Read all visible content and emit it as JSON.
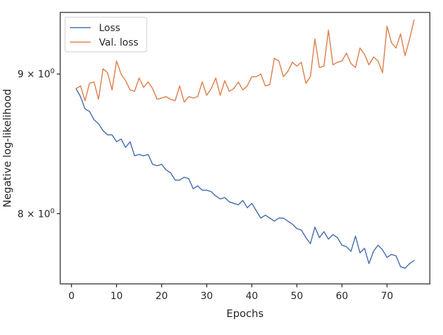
{
  "chart_data": {
    "type": "line",
    "title": "",
    "xlabel": "Epochs",
    "ylabel": "Negative log-likelihood",
    "xlim": [
      -2.5,
      79.5
    ],
    "ylim": [
      7.54,
      9.48
    ],
    "yscale": "log",
    "grid": false,
    "legend_position": "upper-left",
    "x_ticks": [
      {
        "value": 0,
        "label": "0"
      },
      {
        "value": 10,
        "label": "10"
      },
      {
        "value": 20,
        "label": "20"
      },
      {
        "value": 30,
        "label": "30"
      },
      {
        "value": 40,
        "label": "40"
      },
      {
        "value": 50,
        "label": "50"
      },
      {
        "value": 60,
        "label": "60"
      },
      {
        "value": 70,
        "label": "70"
      }
    ],
    "y_ticks": [
      {
        "value": 8,
        "label_base": "8 × 10",
        "label_exp": "0"
      },
      {
        "value": 9,
        "label_base": "9 × 10",
        "label_exp": "0"
      }
    ],
    "x": [
      1,
      2,
      3,
      4,
      5,
      6,
      7,
      8,
      9,
      10,
      11,
      12,
      13,
      14,
      15,
      16,
      17,
      18,
      19,
      20,
      21,
      22,
      23,
      24,
      25,
      26,
      27,
      28,
      29,
      30,
      31,
      32,
      33,
      34,
      35,
      36,
      37,
      38,
      39,
      40,
      41,
      42,
      43,
      44,
      45,
      46,
      47,
      48,
      49,
      50,
      51,
      52,
      53,
      54,
      55,
      56,
      57,
      58,
      59,
      60,
      61,
      62,
      63,
      64,
      65,
      66,
      67,
      68,
      69,
      70,
      71,
      72,
      73,
      74,
      75,
      76
    ],
    "series": [
      {
        "name": "Loss",
        "color": "#4c72b0",
        "values": [
          8.89,
          8.83,
          8.74,
          8.72,
          8.66,
          8.63,
          8.58,
          8.55,
          8.55,
          8.5,
          8.52,
          8.46,
          8.5,
          8.4,
          8.41,
          8.4,
          8.41,
          8.34,
          8.33,
          8.34,
          8.3,
          8.28,
          8.23,
          8.23,
          8.25,
          8.24,
          8.17,
          8.19,
          8.16,
          8.16,
          8.15,
          8.12,
          8.1,
          8.11,
          8.08,
          8.07,
          8.06,
          8.09,
          8.04,
          8.07,
          8.02,
          7.97,
          7.99,
          7.97,
          7.95,
          7.97,
          7.97,
          7.95,
          7.93,
          7.9,
          7.89,
          7.84,
          7.8,
          7.91,
          7.84,
          7.88,
          7.83,
          7.86,
          7.84,
          7.79,
          7.78,
          7.75,
          7.85,
          7.74,
          7.77,
          7.67,
          7.75,
          7.79,
          7.76,
          7.71,
          7.73,
          7.72,
          7.65,
          7.64,
          7.67,
          7.69
        ]
      },
      {
        "name": "Val. loss",
        "color": "#dd8452",
        "values": [
          8.89,
          8.91,
          8.8,
          8.93,
          8.94,
          8.81,
          9.04,
          9.01,
          8.88,
          9.1,
          9.0,
          8.95,
          8.88,
          8.87,
          8.97,
          8.9,
          8.94,
          8.89,
          8.81,
          8.82,
          8.83,
          8.81,
          8.8,
          8.91,
          8.79,
          8.83,
          8.82,
          8.83,
          8.94,
          8.84,
          8.89,
          8.97,
          8.84,
          8.95,
          8.87,
          8.89,
          8.94,
          8.88,
          8.91,
          8.98,
          8.98,
          9.0,
          8.91,
          8.92,
          9.12,
          9.1,
          8.98,
          9.02,
          9.09,
          9.06,
          9.09,
          8.93,
          8.98,
          9.27,
          9.05,
          9.06,
          9.34,
          9.07,
          9.09,
          9.1,
          9.16,
          9.08,
          9.05,
          9.2,
          9.15,
          9.07,
          9.13,
          9.1,
          9.01,
          9.37,
          9.24,
          9.2,
          9.31,
          9.14,
          9.27,
          9.42
        ]
      }
    ]
  }
}
